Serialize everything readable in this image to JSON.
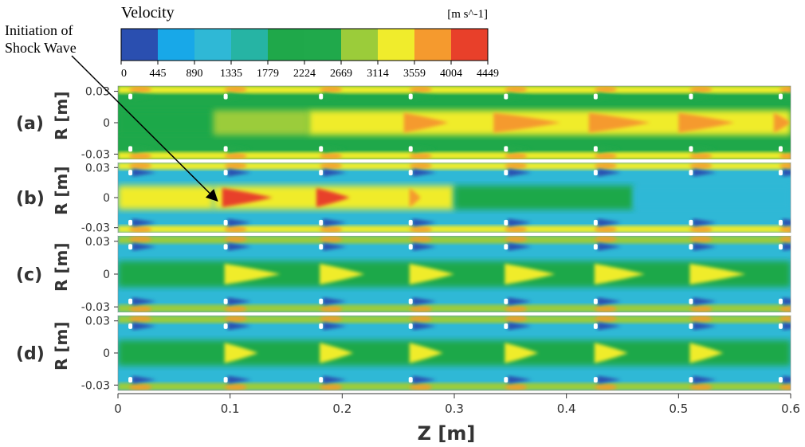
{
  "chart_data": {
    "type": "heatmap",
    "colorbar": {
      "title": "Velocity",
      "unit": "[m s^-1]",
      "ticks": [
        "0",
        "445",
        "890",
        "1335",
        "1779",
        "2224",
        "2669",
        "3114",
        "3559",
        "4004",
        "4449"
      ],
      "colors": [
        "#2a4fb0",
        "#18a8e8",
        "#2fb8d6",
        "#26b4a4",
        "#1fa84a",
        "#20a94b",
        "#9bcc3a",
        "#f0ec2c",
        "#f59a2e",
        "#e8402a"
      ]
    },
    "annotation": "Initiation of\nShock Wave",
    "annotation_pointer": {
      "panel": "b",
      "z": 0.09,
      "r": 0.0
    },
    "xlabel": "Z [m]",
    "xlim": [
      0,
      0.6
    ],
    "xticks": [
      "0",
      "0.1",
      "0.2",
      "0.3",
      "0.4",
      "0.5",
      "0.6"
    ],
    "ylabel": "R [m]",
    "yticks": [
      "0.03",
      "0",
      "-0.03"
    ],
    "ylim": [
      -0.035,
      0.035
    ],
    "injector_z": [
      0.01,
      0.095,
      0.18,
      0.26,
      0.345,
      0.425,
      0.51,
      0.59
    ],
    "panels": [
      {
        "label": "(a)",
        "background": "#1fa84a",
        "core_band": [
          {
            "z0": 0.0,
            "z1": 0.085,
            "color": "#1fa84a"
          },
          {
            "z0": 0.085,
            "z1": 0.17,
            "color": "#9bcc3a"
          },
          {
            "z0": 0.17,
            "z1": 0.6,
            "color": "#f0ec2c"
          }
        ],
        "core_plumes": [
          {
            "z": 0.255,
            "len": 0.04,
            "color": "#f59a2e"
          },
          {
            "z": 0.335,
            "len": 0.06,
            "color": "#f59a2e"
          },
          {
            "z": 0.42,
            "len": 0.055,
            "color": "#f59a2e"
          },
          {
            "z": 0.5,
            "len": 0.05,
            "color": "#f59a2e"
          },
          {
            "z": 0.585,
            "len": 0.015,
            "color": "#f59a2e"
          }
        ],
        "edge_color": "#f0ec2c",
        "edge_spots_color": "#f59a2e",
        "jet_color": "#20a94b"
      },
      {
        "label": "(b)",
        "background": "#2fb8d6",
        "core_band": [
          {
            "z0": 0.0,
            "z1": 0.085,
            "color": "#f0ec2c"
          },
          {
            "z0": 0.085,
            "z1": 0.3,
            "color": "#f0ec2c"
          },
          {
            "z0": 0.3,
            "z1": 0.46,
            "color": "#1fa84a"
          },
          {
            "z0": 0.46,
            "z1": 0.6,
            "color": "#2fb8d6"
          }
        ],
        "core_plumes": [
          {
            "z": 0.093,
            "len": 0.045,
            "color": "#e8402a"
          },
          {
            "z": 0.177,
            "len": 0.03,
            "color": "#e8402a"
          },
          {
            "z": 0.26,
            "len": 0.01,
            "color": "#f59a2e"
          }
        ],
        "edge_color": "#f0ec2c",
        "edge_spots_color": "#f59a2e",
        "jet_color": "#2a4fb0"
      },
      {
        "label": "(c)",
        "background": "#2fb8d6",
        "core_band": [
          {
            "z0": 0.0,
            "z1": 0.6,
            "color": "#1fa84a"
          }
        ],
        "core_plumes": [
          {
            "z": 0.095,
            "len": 0.05,
            "color": "#f0ec2c"
          },
          {
            "z": 0.18,
            "len": 0.04,
            "color": "#f0ec2c"
          },
          {
            "z": 0.26,
            "len": 0.04,
            "color": "#f0ec2c"
          },
          {
            "z": 0.345,
            "len": 0.045,
            "color": "#f0ec2c"
          },
          {
            "z": 0.425,
            "len": 0.045,
            "color": "#f0ec2c"
          },
          {
            "z": 0.51,
            "len": 0.05,
            "color": "#f0ec2c"
          }
        ],
        "edge_color": "#9bcc3a",
        "edge_spots_color": "#f59a2e",
        "jet_color": "#2a4fb0"
      },
      {
        "label": "(d)",
        "background": "#2fb8d6",
        "core_band": [
          {
            "z0": 0.0,
            "z1": 0.6,
            "color": "#1fa84a"
          }
        ],
        "core_plumes": [
          {
            "z": 0.095,
            "len": 0.03,
            "color": "#f0ec2c"
          },
          {
            "z": 0.18,
            "len": 0.03,
            "color": "#f0ec2c"
          },
          {
            "z": 0.26,
            "len": 0.03,
            "color": "#f0ec2c"
          },
          {
            "z": 0.345,
            "len": 0.03,
            "color": "#f0ec2c"
          },
          {
            "z": 0.425,
            "len": 0.03,
            "color": "#f0ec2c"
          },
          {
            "z": 0.51,
            "len": 0.03,
            "color": "#f0ec2c"
          }
        ],
        "edge_color": "#9bcc3a",
        "edge_spots_color": "#f59a2e",
        "jet_color": "#2a4fb0"
      }
    ]
  }
}
